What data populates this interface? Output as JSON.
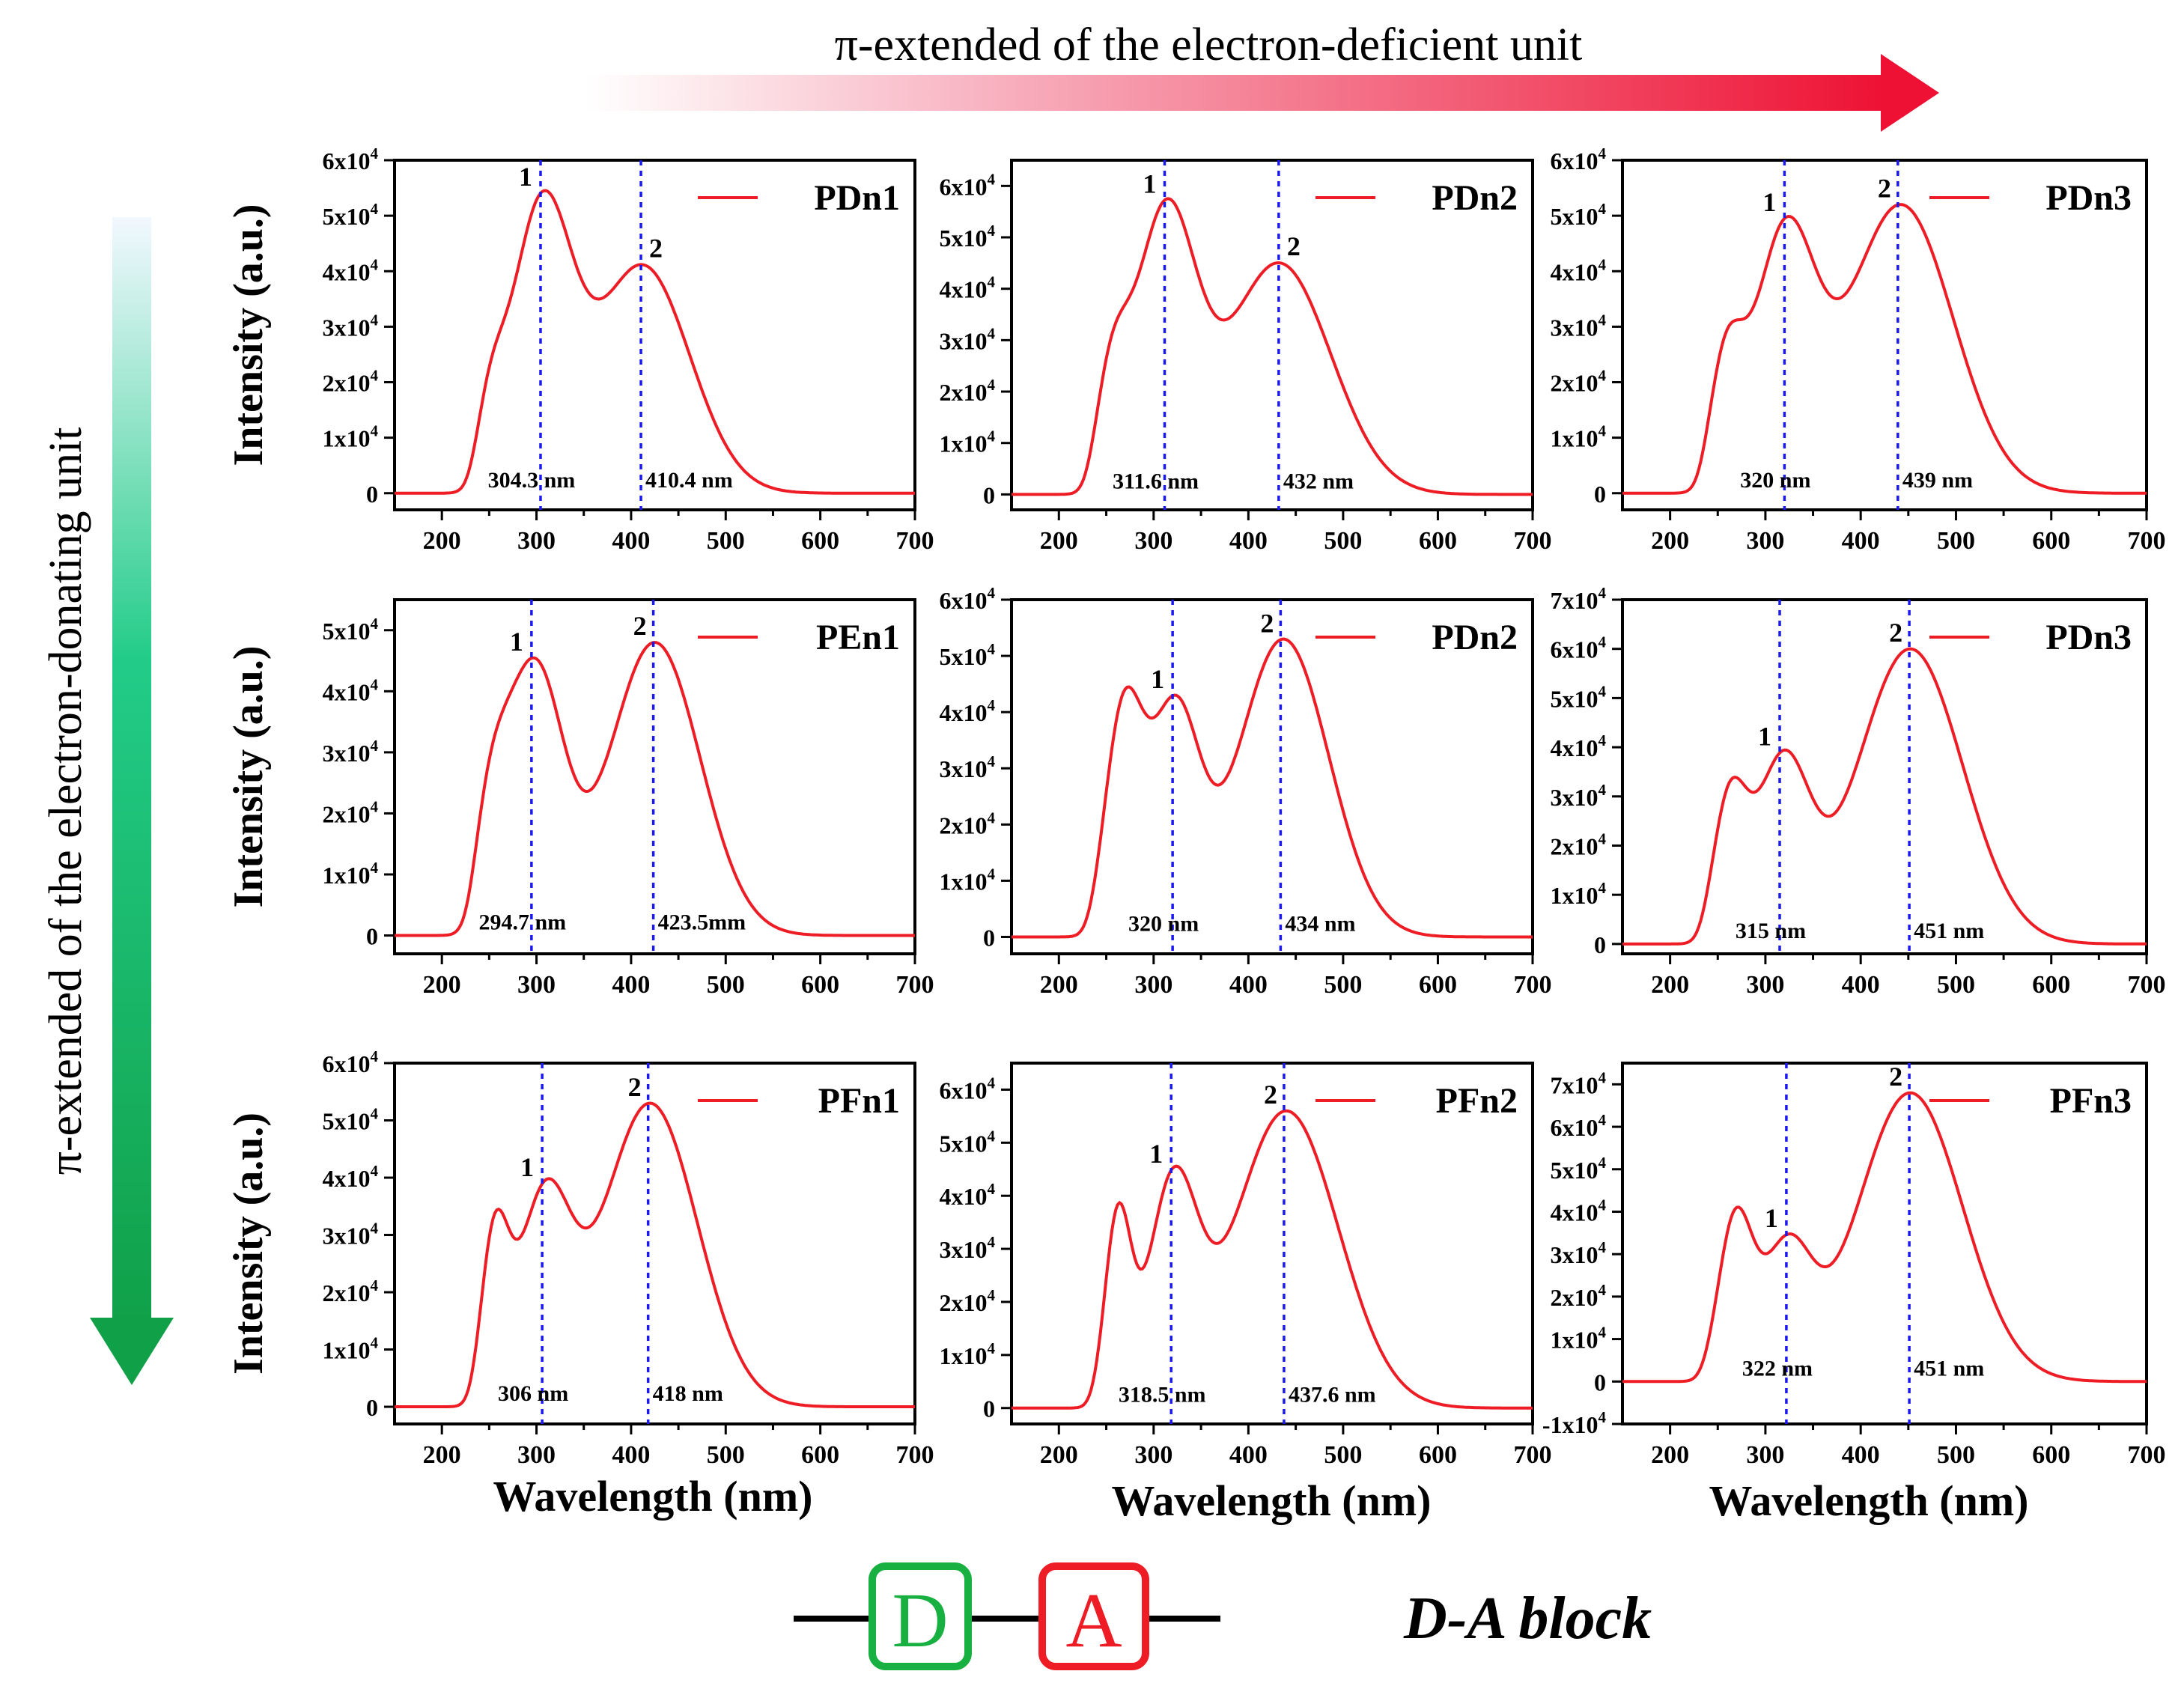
{
  "header": {
    "top_arrow_label": "π-extended of the electron-deficient unit",
    "side_arrow_label": "π-extended of the electron-donating unit",
    "arrow_colors": {
      "deficient": "#ee1133",
      "donating": "#12aa55"
    }
  },
  "footer": {
    "donor_letter": "D",
    "acceptor_letter": "A",
    "block_label": "D-A block",
    "donor_color": "#18b040",
    "acceptor_color": "#ee1c24"
  },
  "axis_text": {
    "xlabel": "Wavelength (nm)",
    "ylabel": "Intensity (a.u.)",
    "xticks": [
      "200",
      "300",
      "400",
      "500",
      "600",
      "700"
    ]
  },
  "colors": {
    "curve": "#ee1c24",
    "guide": "#1a1aee",
    "axis": "#000000"
  },
  "chart_data": [
    {
      "type": "line",
      "legend": "PDn1",
      "xlim": [
        150,
        700
      ],
      "ylim": [
        -0.3,
        6
      ],
      "yticks": [
        "0",
        "1x10^4",
        "2x10^4",
        "3x10^4",
        "4x10^4",
        "5x10^4",
        "6x10^4"
      ],
      "peak_labels": [
        "1",
        "2"
      ],
      "peak_x": [
        304.3,
        410.4
      ],
      "peak_texts": [
        "304.3 nm",
        "410.4 nm"
      ],
      "bands": [
        {
          "c": 250,
          "a": 1.2,
          "w": 16
        },
        {
          "c": 305,
          "a": 5.0,
          "w": 32
        },
        {
          "c": 412,
          "a": 4.1,
          "w": 50
        }
      ]
    },
    {
      "type": "line",
      "legend": "PDn2",
      "xlim": [
        150,
        700
      ],
      "ylim": [
        -0.3,
        6.5
      ],
      "yticks": [
        "0",
        "1x10^4",
        "2x10^4",
        "3x10^4",
        "4x10^4",
        "5x10^4",
        "6x10^4"
      ],
      "peak_labels": [
        "1",
        "2"
      ],
      "peak_x": [
        311.6,
        432
      ],
      "peak_texts": [
        "311.6 nm",
        "432 nm"
      ],
      "bands": [
        {
          "c": 255,
          "a": 2.0,
          "w": 18
        },
        {
          "c": 312,
          "a": 5.3,
          "w": 32
        },
        {
          "c": 432,
          "a": 4.5,
          "w": 55
        }
      ]
    },
    {
      "type": "line",
      "legend": "PDn3",
      "xlim": [
        150,
        700
      ],
      "ylim": [
        -0.3,
        6
      ],
      "yticks": [
        "0",
        "1x10^4",
        "2x10^4",
        "3x10^4",
        "4x10^4",
        "5x10^4",
        "6x10^4"
      ],
      "peak_labels": [
        "1",
        "2"
      ],
      "peak_x": [
        320,
        439
      ],
      "peak_texts": [
        "320 nm",
        "439 nm"
      ],
      "bands": [
        {
          "c": 258,
          "a": 2.2,
          "w": 18
        },
        {
          "c": 320,
          "a": 4.5,
          "w": 32
        },
        {
          "c": 442,
          "a": 5.2,
          "w": 55
        }
      ]
    },
    {
      "type": "line",
      "legend": "PEn1",
      "xlim": [
        150,
        700
      ],
      "ylim": [
        -0.3,
        5.5
      ],
      "yticks": [
        "0",
        "1x10^4",
        "2x10^4",
        "3x10^4",
        "4x10^4",
        "5x10^4"
      ],
      "peak_labels": [
        "1",
        "2"
      ],
      "peak_x": [
        294.7,
        423.5
      ],
      "peak_texts": [
        "294.7 nm",
        "423.5mm"
      ],
      "bands": [
        {
          "c": 250,
          "a": 1.8,
          "w": 20
        },
        {
          "c": 298,
          "a": 4.3,
          "w": 30
        },
        {
          "c": 425,
          "a": 4.8,
          "w": 48
        }
      ]
    },
    {
      "type": "line",
      "legend": "PDn2",
      "xlim": [
        150,
        700
      ],
      "ylim": [
        -0.3,
        6
      ],
      "yticks": [
        "0",
        "1x10^4",
        "2x10^4",
        "3x10^4",
        "4x10^4",
        "5x10^4",
        "6x10^4"
      ],
      "peak_labels": [
        "1",
        "2"
      ],
      "peak_x": [
        320,
        434
      ],
      "peak_texts": [
        "320 nm",
        "434 nm"
      ],
      "bands": [
        {
          "c": 268,
          "a": 3.9,
          "w": 20
        },
        {
          "c": 322,
          "a": 3.9,
          "w": 26
        },
        {
          "c": 437,
          "a": 5.3,
          "w": 48
        }
      ]
    },
    {
      "type": "line",
      "legend": "PDn3",
      "xlim": [
        150,
        700
      ],
      "ylim": [
        -0.2,
        7
      ],
      "yticks": [
        "0",
        "1x10^4",
        "2x10^4",
        "3x10^4",
        "4x10^4",
        "5x10^4",
        "6x10^4",
        "7x10^4"
      ],
      "peak_labels": [
        "1",
        "2"
      ],
      "peak_x": [
        315,
        451
      ],
      "peak_texts": [
        "315 nm",
        "451 nm"
      ],
      "bands": [
        {
          "c": 262,
          "a": 2.8,
          "w": 18
        },
        {
          "c": 318,
          "a": 3.6,
          "w": 28
        },
        {
          "c": 452,
          "a": 6.0,
          "w": 55
        }
      ]
    },
    {
      "type": "line",
      "legend": "PFn1",
      "xlim": [
        150,
        700
      ],
      "ylim": [
        -0.3,
        6
      ],
      "yticks": [
        "0",
        "1x10^4",
        "2x10^4",
        "3x10^4",
        "4x10^4",
        "5x10^4",
        "6x10^4"
      ],
      "peak_labels": [
        "1",
        "2"
      ],
      "peak_x": [
        306,
        418
      ],
      "peak_texts": [
        "306 nm",
        "418 nm"
      ],
      "bands": [
        {
          "c": 255,
          "a": 2.8,
          "w": 15
        },
        {
          "c": 308,
          "a": 3.5,
          "w": 28
        },
        {
          "c": 420,
          "a": 5.3,
          "w": 50
        }
      ]
    },
    {
      "type": "line",
      "legend": "PFn2",
      "xlim": [
        150,
        700
      ],
      "ylim": [
        -0.3,
        6.5
      ],
      "yticks": [
        "0",
        "1x10^4",
        "2x10^4",
        "3x10^4",
        "4x10^4",
        "5x10^4",
        "6x10^4"
      ],
      "peak_labels": [
        "1",
        "2"
      ],
      "peak_x": [
        318.5,
        437.6
      ],
      "peak_texts": [
        "318.5 nm",
        "437.6 nm"
      ],
      "bands": [
        {
          "c": 262,
          "a": 3.5,
          "w": 14
        },
        {
          "c": 320,
          "a": 4.0,
          "w": 26
        },
        {
          "c": 440,
          "a": 5.6,
          "w": 55
        }
      ]
    },
    {
      "type": "line",
      "legend": "PFn3",
      "xlim": [
        150,
        700
      ],
      "ylim": [
        -1,
        7.5
      ],
      "yticks": [
        "-1x10^4",
        "0",
        "1x10^4",
        "2x10^4",
        "3x10^4",
        "4x10^4",
        "5x10^4",
        "6x10^4",
        "7x10^4"
      ],
      "peak_labels": [
        "1",
        "2"
      ],
      "peak_x": [
        322,
        451
      ],
      "peak_texts": [
        "322 nm",
        "451 nm"
      ],
      "bands": [
        {
          "c": 268,
          "a": 3.7,
          "w": 18
        },
        {
          "c": 322,
          "a": 3.0,
          "w": 26
        },
        {
          "c": 452,
          "a": 6.8,
          "w": 55
        }
      ]
    }
  ]
}
